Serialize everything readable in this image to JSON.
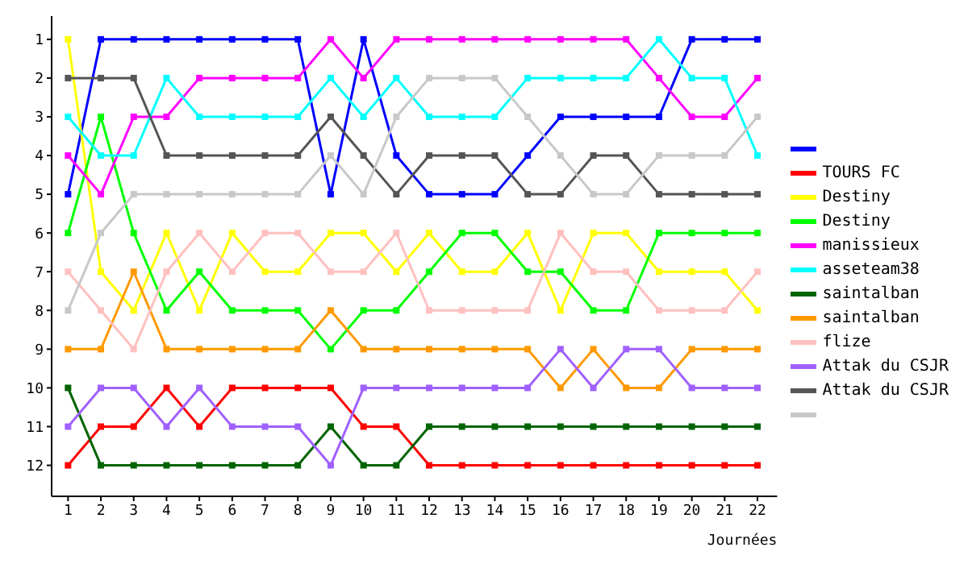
{
  "chart_data": {
    "type": "line",
    "xlabel": "Journées",
    "x": [
      1,
      2,
      3,
      4,
      5,
      6,
      7,
      8,
      9,
      10,
      11,
      12,
      13,
      14,
      15,
      16,
      17,
      18,
      19,
      20,
      21,
      22
    ],
    "xlim": [
      0.5,
      22.6
    ],
    "xticks": [
      1,
      2,
      3,
      4,
      5,
      6,
      7,
      8,
      9,
      10,
      11,
      12,
      13,
      14,
      15,
      16,
      17,
      18,
      19,
      20,
      21,
      22
    ],
    "ylim": [
      12.8,
      0.4
    ],
    "yticks": [
      1,
      2,
      3,
      4,
      5,
      6,
      7,
      8,
      9,
      10,
      11,
      12
    ],
    "grid": false,
    "legend": "right",
    "marker": "square",
    "line_style": "solid",
    "series": [
      {
        "color": "#0000ff",
        "values": [
          5,
          1,
          1,
          1,
          1,
          1,
          1,
          1,
          5,
          1,
          4,
          5,
          5,
          5,
          4,
          3,
          3,
          3,
          3,
          1,
          1,
          1
        ]
      },
      {
        "name": "TOURS FC",
        "color": "#ff0000",
        "values": [
          12,
          11,
          11,
          10,
          11,
          10,
          10,
          10,
          10,
          11,
          11,
          12,
          12,
          12,
          12,
          12,
          12,
          12,
          12,
          12,
          12,
          12
        ]
      },
      {
        "name": "Destiny",
        "color": "#ffff00",
        "values": [
          1,
          7,
          8,
          6,
          8,
          6,
          7,
          7,
          6,
          6,
          7,
          6,
          7,
          7,
          6,
          8,
          6,
          6,
          7,
          7,
          7,
          8
        ]
      },
      {
        "name": "Destiny",
        "color": "#00ff00",
        "values": [
          6,
          3,
          6,
          8,
          7,
          8,
          8,
          8,
          9,
          8,
          8,
          7,
          6,
          6,
          7,
          7,
          8,
          8,
          6,
          6,
          6,
          6
        ]
      },
      {
        "name": "manissieux",
        "color": "#ff00ff",
        "values": [
          4,
          5,
          3,
          3,
          2,
          2,
          2,
          2,
          1,
          2,
          1,
          1,
          1,
          1,
          1,
          1,
          1,
          1,
          2,
          3,
          3,
          2
        ]
      },
      {
        "name": "asseteam38",
        "color": "#00ffff",
        "values": [
          3,
          4,
          4,
          2,
          3,
          3,
          3,
          3,
          2,
          3,
          2,
          3,
          3,
          3,
          2,
          2,
          2,
          2,
          1,
          2,
          2,
          4
        ]
      },
      {
        "name": "saintalban",
        "color": "#006400",
        "values": [
          10,
          12,
          12,
          12,
          12,
          12,
          12,
          12,
          11,
          12,
          12,
          11,
          11,
          11,
          11,
          11,
          11,
          11,
          11,
          11,
          11,
          11
        ]
      },
      {
        "name": "saintalban",
        "color": "#ff9900",
        "values": [
          9,
          9,
          7,
          9,
          9,
          9,
          9,
          9,
          8,
          9,
          9,
          9,
          9,
          9,
          9,
          10,
          9,
          10,
          10,
          9,
          9,
          9
        ]
      },
      {
        "name": "flize",
        "color": "#ffc0c0",
        "values": [
          7,
          8,
          9,
          7,
          6,
          7,
          6,
          6,
          7,
          7,
          6,
          8,
          8,
          8,
          8,
          6,
          7,
          7,
          8,
          8,
          8,
          7
        ]
      },
      {
        "name": "Attak du CSJR",
        "color": "#a060ff",
        "values": [
          11,
          10,
          10,
          11,
          10,
          11,
          11,
          11,
          12,
          10,
          10,
          10,
          10,
          10,
          10,
          9,
          10,
          9,
          9,
          10,
          10,
          10
        ]
      },
      {
        "name": "Attak du CSJR",
        "color": "#555555",
        "values": [
          2,
          2,
          2,
          4,
          4,
          4,
          4,
          4,
          3,
          4,
          5,
          4,
          4,
          4,
          5,
          5,
          4,
          4,
          5,
          5,
          5,
          5
        ]
      },
      {
        "color": "#c8c8c8",
        "values": [
          8,
          6,
          5,
          5,
          5,
          5,
          5,
          5,
          4,
          5,
          3,
          2,
          2,
          2,
          3,
          4,
          5,
          5,
          4,
          4,
          4,
          3
        ]
      }
    ]
  }
}
